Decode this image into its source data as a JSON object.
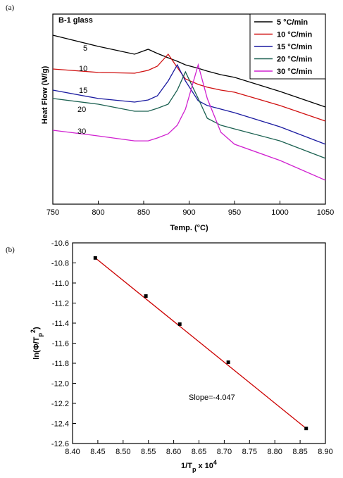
{
  "chart_data": [
    {
      "type": "line",
      "panel_label": "(a)",
      "title": "B-1 glass",
      "xlabel": "Temp. (°C)",
      "ylabel": "Heat Flow (W/g)",
      "x": [
        750,
        800,
        840,
        855,
        865,
        877,
        887,
        896,
        910,
        920,
        935,
        950,
        1000,
        1050
      ],
      "xlim": [
        750,
        1050
      ],
      "xticks": [
        750,
        800,
        850,
        900,
        950,
        1000,
        1050
      ],
      "ylim": [
        0,
        100
      ],
      "legend": "upper right",
      "series": [
        {
          "name": "5 °C/min",
          "label": "5",
          "color": "#000000",
          "values": [
            88.9,
            83.0,
            78.9,
            81.5,
            79.3,
            77.0,
            75.2,
            73.3,
            71.5,
            70.0,
            68.1,
            66.7,
            59.3,
            51.1
          ]
        },
        {
          "name": "10 °C/min",
          "label": "10",
          "color": "#d01010",
          "values": [
            71.1,
            69.3,
            68.9,
            70.4,
            72.6,
            78.9,
            71.9,
            65.9,
            63.0,
            61.5,
            60.0,
            58.9,
            51.9,
            43.7
          ]
        },
        {
          "name": "15 °C/min",
          "label": "15",
          "color": "#1a1aa0",
          "values": [
            60.0,
            55.6,
            53.7,
            54.8,
            57.0,
            64.8,
            73.3,
            64.8,
            54.4,
            51.9,
            50.0,
            48.1,
            40.7,
            31.5
          ]
        },
        {
          "name": "20 °C/min",
          "label": "20",
          "color": "#1a6050",
          "values": [
            55.6,
            52.6,
            48.9,
            48.9,
            50.4,
            52.6,
            60.0,
            69.6,
            55.6,
            45.2,
            41.5,
            39.6,
            33.3,
            24.1
          ]
        },
        {
          "name": "30 °C/min",
          "label": "30",
          "color": "#d020d0",
          "values": [
            38.9,
            35.9,
            33.3,
            33.3,
            34.8,
            37.0,
            41.5,
            50.0,
            73.3,
            55.6,
            37.8,
            31.5,
            23.0,
            12.6
          ]
        }
      ]
    },
    {
      "type": "scatter",
      "panel_label": "(b)",
      "annotation": "Slope=-4.047",
      "xlabel_parts": [
        {
          "text": "1/T"
        },
        {
          "text": "p",
          "shift": "sub"
        },
        {
          "text": " x 10"
        },
        {
          "text": "4",
          "shift": "sup"
        }
      ],
      "ylabel_parts": [
        {
          "text": "ln(Φ/T"
        },
        {
          "text": "p",
          "shift": "sub"
        },
        {
          "text": "2",
          "shift": "sup"
        },
        {
          "text": ")"
        }
      ],
      "x": [
        8.445,
        8.545,
        8.612,
        8.708,
        8.862
      ],
      "values": [
        -10.75,
        -11.13,
        -11.41,
        -11.79,
        -12.45
      ],
      "color": "#000000",
      "fit": {
        "x": [
          8.445,
          8.862
        ],
        "values": [
          -10.75,
          -12.45
        ],
        "color": "#cc0000"
      },
      "xlim": [
        8.4,
        8.9
      ],
      "xticks": [
        {
          "value": 8.4,
          "label": "8.40"
        },
        {
          "value": 8.45,
          "label": "8.45"
        },
        {
          "value": 8.5,
          "label": "8.50"
        },
        {
          "value": 8.55,
          "label": "8.55"
        },
        {
          "value": 8.6,
          "label": "8.60"
        },
        {
          "value": 8.65,
          "label": "8.65"
        },
        {
          "value": 8.7,
          "label": "8.70"
        },
        {
          "value": 8.75,
          "label": "8.75"
        },
        {
          "value": 8.8,
          "label": "8.80"
        },
        {
          "value": 8.85,
          "label": "8.85"
        },
        {
          "value": 8.9,
          "label": "8.90"
        }
      ],
      "ylim": [
        -12.6,
        -10.6
      ],
      "yticks": [
        -12.6,
        -12.4,
        -12.2,
        {
          "value": -12,
          "label": "-12.0"
        },
        -11.8,
        -11.6,
        -11.4,
        -11.2,
        {
          "value": -11,
          "label": "-11.0"
        },
        -10.8,
        -10.6
      ]
    }
  ]
}
